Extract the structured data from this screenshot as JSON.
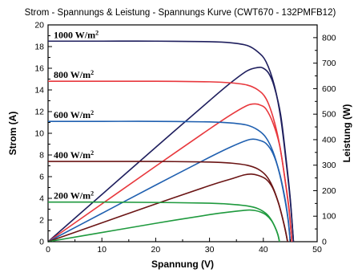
{
  "chart_data": {
    "type": "line",
    "title": "Strom - Spannungs & Leistung - Spannungs Kurve (CWT670 - 132PMFB12)",
    "xlabel": "Spannung (V)",
    "ylabel": "Strom (A)",
    "y2label": "Leistung (W)",
    "xlim": [
      0,
      50
    ],
    "ylim": [
      0,
      20
    ],
    "y2lim": [
      0,
      850
    ],
    "xticks": [
      "0",
      "10",
      "20",
      "30",
      "40",
      "50"
    ],
    "yticks": [
      "0",
      "2",
      "4",
      "6",
      "8",
      "10",
      "12",
      "14",
      "16",
      "18",
      "20"
    ],
    "y2ticks": [
      "0",
      "100",
      "200",
      "300",
      "400",
      "500",
      "600",
      "700",
      "800"
    ],
    "grid": false,
    "series": [
      {
        "name": "1000 W/m²",
        "label_base": "1000 W/m",
        "label_sup": "2",
        "color": "#1f1f5e",
        "current": [
          [
            0,
            18.5
          ],
          [
            10,
            18.5
          ],
          [
            20,
            18.5
          ],
          [
            30,
            18.45
          ],
          [
            34,
            18.35
          ],
          [
            37,
            18.1
          ],
          [
            39,
            17.5
          ],
          [
            40.5,
            16.6
          ],
          [
            42,
            14.5
          ],
          [
            43.2,
            11.5
          ],
          [
            44.2,
            7.5
          ],
          [
            45,
            3.8
          ],
          [
            45.6,
            0
          ]
        ],
        "power": [
          [
            0,
            0
          ],
          [
            10,
            185
          ],
          [
            20,
            370
          ],
          [
            30,
            553
          ],
          [
            34,
            624
          ],
          [
            37,
            670
          ],
          [
            39,
            683
          ],
          [
            40,
            680
          ],
          [
            41,
            660
          ],
          [
            42,
            610
          ],
          [
            43.2,
            500
          ],
          [
            44.2,
            330
          ],
          [
            45,
            170
          ],
          [
            45.6,
            0
          ]
        ]
      },
      {
        "name": "800 W/m²",
        "label_base": "800 W/m",
        "label_sup": "2",
        "color": "#e8383d",
        "current": [
          [
            0,
            14.8
          ],
          [
            10,
            14.8
          ],
          [
            20,
            14.8
          ],
          [
            30,
            14.75
          ],
          [
            34,
            14.65
          ],
          [
            37,
            14.45
          ],
          [
            39,
            14.0
          ],
          [
            40.5,
            13.2
          ],
          [
            41.8,
            11.5
          ],
          [
            43,
            9.0
          ],
          [
            44,
            5.8
          ],
          [
            44.8,
            2.8
          ],
          [
            45.3,
            0
          ]
        ],
        "power": [
          [
            0,
            0
          ],
          [
            10,
            148
          ],
          [
            20,
            296
          ],
          [
            30,
            442
          ],
          [
            34,
            498
          ],
          [
            37,
            534
          ],
          [
            38.5,
            540
          ],
          [
            39.5,
            535
          ],
          [
            40.5,
            520
          ],
          [
            41.8,
            465
          ],
          [
            43,
            380
          ],
          [
            44,
            250
          ],
          [
            44.8,
            125
          ],
          [
            45.3,
            0
          ]
        ]
      },
      {
        "name": "600 W/m²",
        "label_base": "600 W/m",
        "label_sup": "2",
        "color": "#2060b0",
        "current": [
          [
            0,
            11.1
          ],
          [
            10,
            11.1
          ],
          [
            20,
            11.1
          ],
          [
            30,
            11.05
          ],
          [
            34,
            10.95
          ],
          [
            37,
            10.75
          ],
          [
            39,
            10.3
          ],
          [
            40.5,
            9.6
          ],
          [
            41.8,
            8.3
          ],
          [
            43,
            6.3
          ],
          [
            44,
            3.9
          ],
          [
            44.6,
            2.0
          ],
          [
            45,
            0
          ]
        ],
        "power": [
          [
            0,
            0
          ],
          [
            10,
            111
          ],
          [
            20,
            222
          ],
          [
            30,
            331
          ],
          [
            34,
            372
          ],
          [
            37,
            398
          ],
          [
            38.2,
            402
          ],
          [
            39.2,
            398
          ],
          [
            40.5,
            385
          ],
          [
            41.8,
            345
          ],
          [
            43,
            270
          ],
          [
            44,
            172
          ],
          [
            44.6,
            90
          ],
          [
            45,
            0
          ]
        ]
      },
      {
        "name": "400 W/m²",
        "label_base": "400 W/m",
        "label_sup": "2",
        "color": "#6b1515",
        "current": [
          [
            0,
            7.4
          ],
          [
            10,
            7.4
          ],
          [
            20,
            7.4
          ],
          [
            30,
            7.35
          ],
          [
            34,
            7.25
          ],
          [
            37,
            7.05
          ],
          [
            39,
            6.7
          ],
          [
            40.5,
            6.1
          ],
          [
            41.7,
            5.1
          ],
          [
            42.8,
            3.6
          ],
          [
            43.6,
            2.1
          ],
          [
            44.1,
            1.0
          ],
          [
            44.5,
            0
          ]
        ],
        "power": [
          [
            0,
            0
          ],
          [
            10,
            74
          ],
          [
            20,
            148
          ],
          [
            30,
            220
          ],
          [
            34,
            246
          ],
          [
            36.5,
            262
          ],
          [
            37.8,
            265
          ],
          [
            39,
            260
          ],
          [
            40.5,
            245
          ],
          [
            41.7,
            212
          ],
          [
            42.8,
            152
          ],
          [
            43.6,
            90
          ],
          [
            44.1,
            45
          ],
          [
            44.5,
            0
          ]
        ]
      },
      {
        "name": "200 W/m²",
        "label_base": "200 W/m",
        "label_sup": "2",
        "color": "#1f9a3e",
        "current": [
          [
            0,
            3.65
          ],
          [
            10,
            3.65
          ],
          [
            20,
            3.62
          ],
          [
            30,
            3.55
          ],
          [
            34,
            3.45
          ],
          [
            37,
            3.3
          ],
          [
            39,
            3.05
          ],
          [
            40.5,
            2.6
          ],
          [
            41.5,
            2.0
          ],
          [
            42.2,
            1.3
          ],
          [
            42.7,
            0.65
          ],
          [
            43,
            0
          ]
        ],
        "power": [
          [
            0,
            0
          ],
          [
            10,
            36
          ],
          [
            20,
            72
          ],
          [
            30,
            106
          ],
          [
            34,
            117
          ],
          [
            36.5,
            123
          ],
          [
            37.5,
            124
          ],
          [
            38.5,
            122
          ],
          [
            39.5,
            116
          ],
          [
            40.5,
            105
          ],
          [
            41.5,
            83
          ],
          [
            42.2,
            56
          ],
          [
            42.7,
            28
          ],
          [
            43,
            0
          ]
        ]
      }
    ]
  }
}
